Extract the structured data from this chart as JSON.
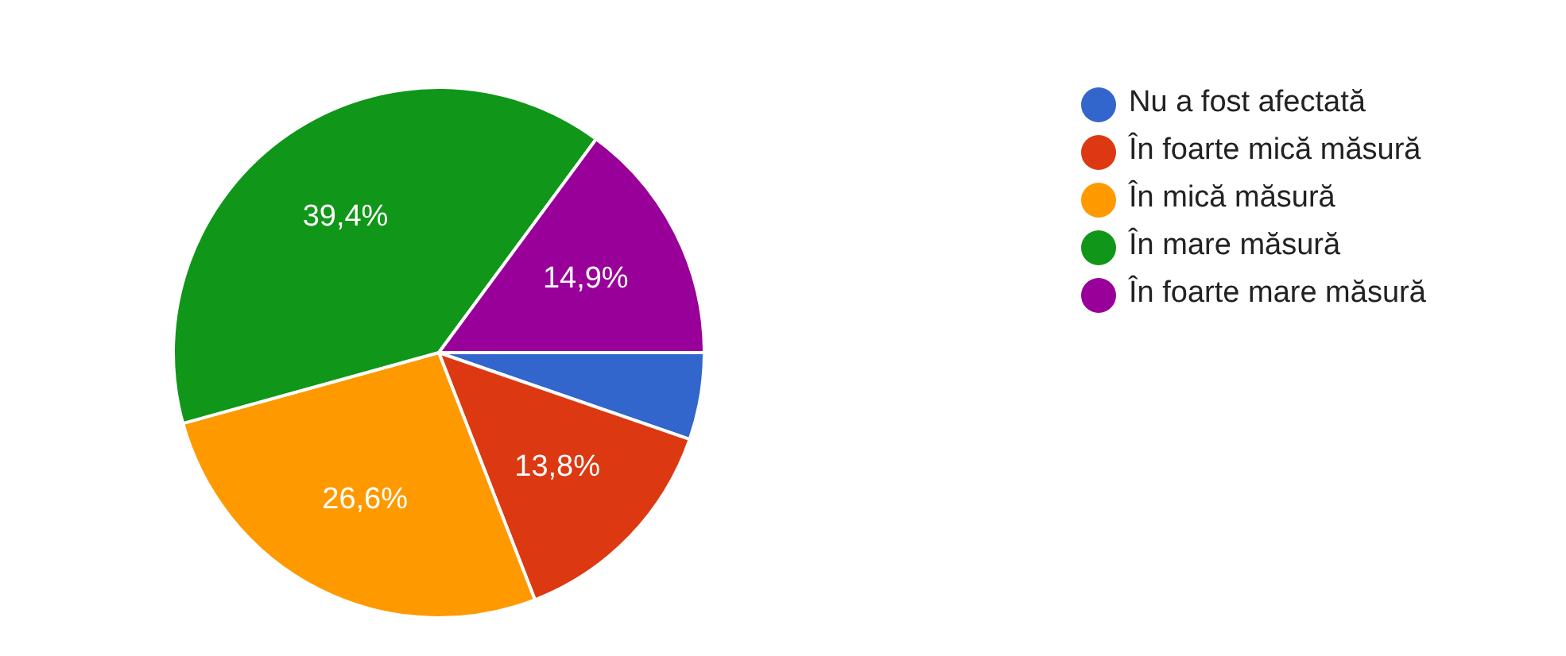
{
  "chart_data": {
    "type": "pie",
    "categories": [
      "Nu a fost afectată",
      "În foarte mică măsură",
      "În mică măsură",
      "În mare măsură",
      "În foarte mare măsură"
    ],
    "values": [
      5.3,
      13.8,
      26.6,
      39.4,
      14.9
    ],
    "colors": [
      "#3366cc",
      "#dc3912",
      "#ff9900",
      "#109618",
      "#990099"
    ],
    "value_labels": [
      null,
      "13,8%",
      "26,6%",
      "39,4%",
      "14,9%"
    ],
    "legend": "right"
  }
}
